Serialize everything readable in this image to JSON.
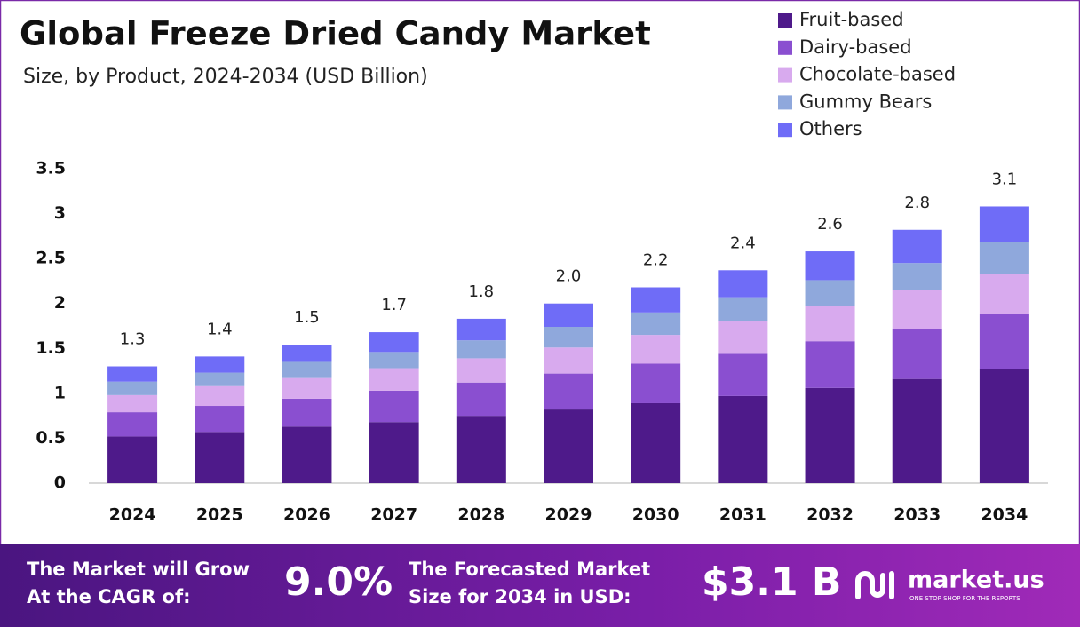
{
  "chart_data": {
    "type": "stacked_bar",
    "title": "Global Freeze Dried Candy Market",
    "subtitle": "Size, by Product, 2024-2034 (USD Billion)",
    "categories": [
      "2024",
      "2025",
      "2026",
      "2027",
      "2028",
      "2029",
      "2030",
      "2031",
      "2032",
      "2033",
      "2034"
    ],
    "series": [
      {
        "name": "Fruit-based",
        "color": "#4e1a8a",
        "values": [
          0.52,
          0.57,
          0.63,
          0.68,
          0.75,
          0.82,
          0.89,
          0.97,
          1.06,
          1.16,
          1.27
        ]
      },
      {
        "name": "Dairy-based",
        "color": "#8a4fd0",
        "values": [
          0.27,
          0.29,
          0.31,
          0.35,
          0.37,
          0.4,
          0.44,
          0.47,
          0.52,
          0.56,
          0.61
        ]
      },
      {
        "name": "Chocolate-based",
        "color": "#d8aaee",
        "values": [
          0.19,
          0.22,
          0.23,
          0.25,
          0.27,
          0.29,
          0.32,
          0.36,
          0.39,
          0.43,
          0.45
        ]
      },
      {
        "name": "Gummy Bears",
        "color": "#8fa8dc",
        "values": [
          0.15,
          0.15,
          0.18,
          0.18,
          0.2,
          0.23,
          0.25,
          0.27,
          0.29,
          0.3,
          0.35
        ]
      },
      {
        "name": "Others",
        "color": "#6f6cf7",
        "values": [
          0.17,
          0.18,
          0.19,
          0.22,
          0.24,
          0.26,
          0.28,
          0.3,
          0.32,
          0.37,
          0.4
        ]
      }
    ],
    "totals": {
      "values": [
        1.3,
        1.4,
        1.5,
        1.7,
        1.8,
        2.0,
        2.2,
        2.4,
        2.6,
        2.8,
        3.1
      ],
      "value_labels": [
        "1.3",
        "1.4",
        "1.5",
        "1.7",
        "1.8",
        "2.0",
        "2.2",
        "2.4",
        "2.6",
        "2.8",
        "3.1"
      ]
    },
    "ylim": [
      0,
      3.5
    ],
    "yticks": [
      0,
      0.5,
      1,
      1.5,
      2,
      2.5,
      3,
      3.5
    ],
    "grid": false
  },
  "footer": {
    "cagr_text": [
      "The Market will Grow",
      "At the CAGR of:"
    ],
    "cagr": "9.0%",
    "size_text": [
      "The Forecasted Market",
      "Size for 2034 in USD:"
    ],
    "size": "$3.1 B",
    "brand": "market.us",
    "tagline": "ONE STOP SHOP FOR THE REPORTS"
  }
}
